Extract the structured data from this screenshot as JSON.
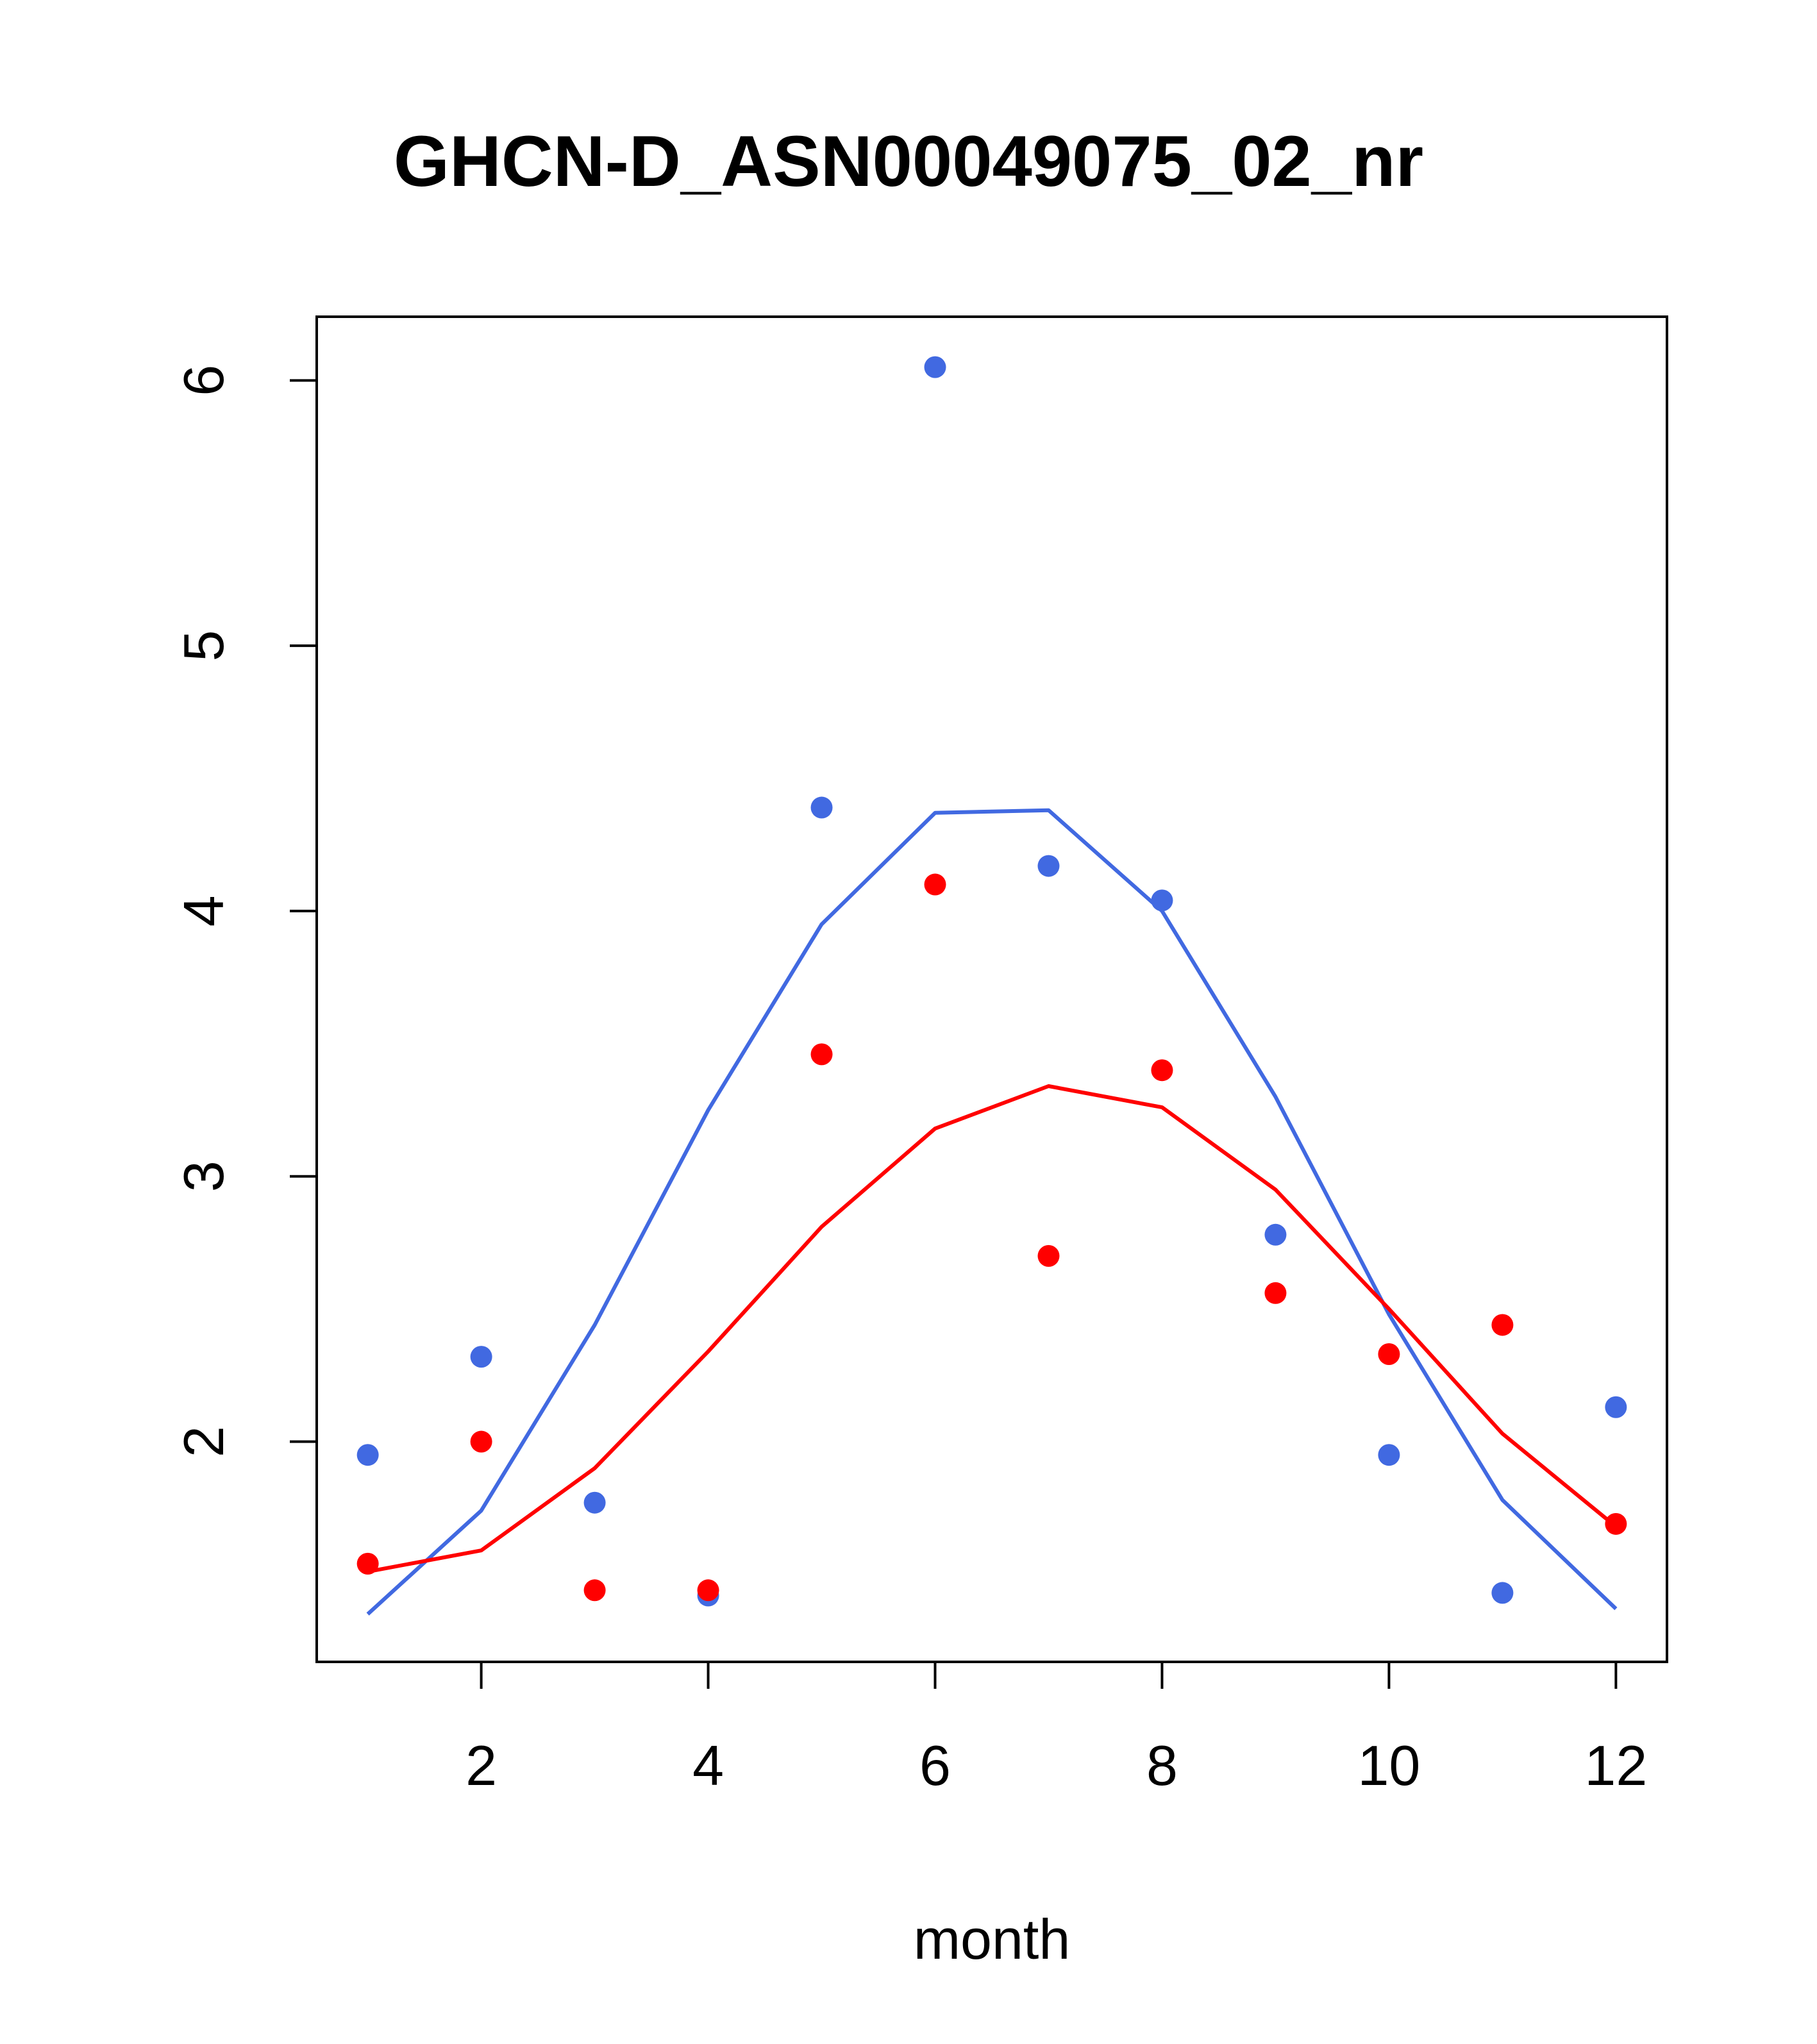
{
  "chart_data": {
    "type": "scatter",
    "title": "GHCN-D_ASN00049075_02_nr",
    "xlabel": "month",
    "ylabel": "",
    "xlim": [
      0.55,
      12.45
    ],
    "ylim": [
      1.17,
      6.24
    ],
    "xticks": [
      2,
      4,
      6,
      8,
      10,
      12
    ],
    "yticks": [
      2,
      3,
      4,
      5,
      6
    ],
    "grid": false,
    "legend": "none",
    "series": [
      {
        "color": "#4169E1",
        "points": {
          "x": [
            1,
            2,
            3,
            4,
            5,
            6,
            7,
            8,
            9,
            10,
            11,
            12
          ],
          "y": [
            1.95,
            2.32,
            1.77,
            1.42,
            4.39,
            6.05,
            4.17,
            4.04,
            2.78,
            1.95,
            1.43,
            2.13
          ]
        },
        "line": {
          "x": [
            1,
            2,
            3,
            4,
            5,
            6,
            7,
            8,
            9,
            10,
            11,
            12
          ],
          "y": [
            1.35,
            1.74,
            2.44,
            3.25,
            3.95,
            4.37,
            4.38,
            4.0,
            3.3,
            2.48,
            1.78,
            1.37
          ]
        }
      },
      {
        "color": "#FF0000",
        "points": {
          "x": [
            1,
            2,
            3,
            4,
            5,
            6,
            7,
            8,
            9,
            10,
            11,
            12
          ],
          "y": [
            1.54,
            2.0,
            1.44,
            1.44,
            3.46,
            4.1,
            2.7,
            3.4,
            2.56,
            2.33,
            2.44,
            1.69
          ]
        },
        "line": {
          "x": [
            1,
            2,
            3,
            4,
            5,
            6,
            7,
            8,
            9,
            10,
            11,
            12
          ],
          "y": [
            1.51,
            1.59,
            1.9,
            2.34,
            2.81,
            3.18,
            3.34,
            3.26,
            2.95,
            2.5,
            2.03,
            1.68
          ]
        }
      }
    ]
  }
}
